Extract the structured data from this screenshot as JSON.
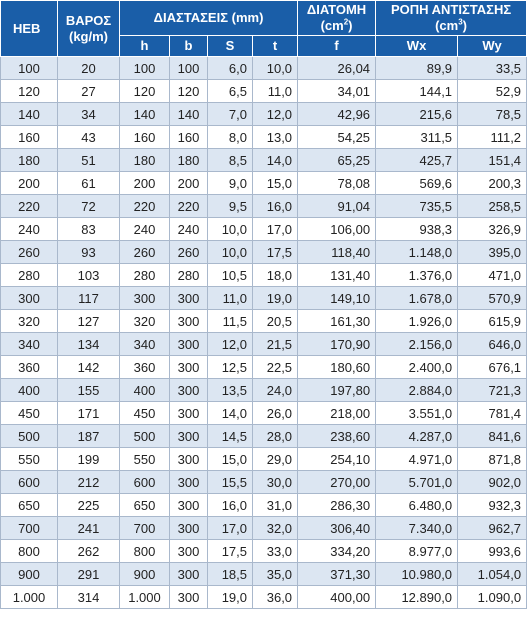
{
  "headers": {
    "heb": "HEB",
    "weight_l1": "ΒΑΡΟΣ",
    "weight_l2": "(kg/m)",
    "dimensions": "ΔΙΑΣΤΑΣΕΙΣ (mm)",
    "section_l1": "ΔΙΑΤΟΜΗ",
    "section_l2_pre": "(cm",
    "section_l2_sup": "2",
    "section_l2_post": ")",
    "moment_l1": "ΡΟΠΗ ΑΝΤΙΣΤΑΣΗΣ",
    "moment_l2_pre": "(cm",
    "moment_l2_sup": "3",
    "moment_l2_post": ")",
    "h": "h",
    "b": "b",
    "s": "S",
    "t": "t",
    "f": "f",
    "wx": "Wx",
    "wy": "Wy"
  },
  "rows": [
    {
      "heb": "100",
      "weight": "20",
      "h": "100",
      "b": "100",
      "s": "6,0",
      "t": "10,0",
      "f": "26,04",
      "wx": "89,9",
      "wy": "33,5"
    },
    {
      "heb": "120",
      "weight": "27",
      "h": "120",
      "b": "120",
      "s": "6,5",
      "t": "11,0",
      "f": "34,01",
      "wx": "144,1",
      "wy": "52,9"
    },
    {
      "heb": "140",
      "weight": "34",
      "h": "140",
      "b": "140",
      "s": "7,0",
      "t": "12,0",
      "f": "42,96",
      "wx": "215,6",
      "wy": "78,5"
    },
    {
      "heb": "160",
      "weight": "43",
      "h": "160",
      "b": "160",
      "s": "8,0",
      "t": "13,0",
      "f": "54,25",
      "wx": "311,5",
      "wy": "111,2"
    },
    {
      "heb": "180",
      "weight": "51",
      "h": "180",
      "b": "180",
      "s": "8,5",
      "t": "14,0",
      "f": "65,25",
      "wx": "425,7",
      "wy": "151,4"
    },
    {
      "heb": "200",
      "weight": "61",
      "h": "200",
      "b": "200",
      "s": "9,0",
      "t": "15,0",
      "f": "78,08",
      "wx": "569,6",
      "wy": "200,3"
    },
    {
      "heb": "220",
      "weight": "72",
      "h": "220",
      "b": "220",
      "s": "9,5",
      "t": "16,0",
      "f": "91,04",
      "wx": "735,5",
      "wy": "258,5"
    },
    {
      "heb": "240",
      "weight": "83",
      "h": "240",
      "b": "240",
      "s": "10,0",
      "t": "17,0",
      "f": "106,00",
      "wx": "938,3",
      "wy": "326,9"
    },
    {
      "heb": "260",
      "weight": "93",
      "h": "260",
      "b": "260",
      "s": "10,0",
      "t": "17,5",
      "f": "118,40",
      "wx": "1.148,0",
      "wy": "395,0"
    },
    {
      "heb": "280",
      "weight": "103",
      "h": "280",
      "b": "280",
      "s": "10,5",
      "t": "18,0",
      "f": "131,40",
      "wx": "1.376,0",
      "wy": "471,0"
    },
    {
      "heb": "300",
      "weight": "117",
      "h": "300",
      "b": "300",
      "s": "11,0",
      "t": "19,0",
      "f": "149,10",
      "wx": "1.678,0",
      "wy": "570,9"
    },
    {
      "heb": "320",
      "weight": "127",
      "h": "320",
      "b": "300",
      "s": "11,5",
      "t": "20,5",
      "f": "161,30",
      "wx": "1.926,0",
      "wy": "615,9"
    },
    {
      "heb": "340",
      "weight": "134",
      "h": "340",
      "b": "300",
      "s": "12,0",
      "t": "21,5",
      "f": "170,90",
      "wx": "2.156,0",
      "wy": "646,0"
    },
    {
      "heb": "360",
      "weight": "142",
      "h": "360",
      "b": "300",
      "s": "12,5",
      "t": "22,5",
      "f": "180,60",
      "wx": "2.400,0",
      "wy": "676,1"
    },
    {
      "heb": "400",
      "weight": "155",
      "h": "400",
      "b": "300",
      "s": "13,5",
      "t": "24,0",
      "f": "197,80",
      "wx": "2.884,0",
      "wy": "721,3"
    },
    {
      "heb": "450",
      "weight": "171",
      "h": "450",
      "b": "300",
      "s": "14,0",
      "t": "26,0",
      "f": "218,00",
      "wx": "3.551,0",
      "wy": "781,4"
    },
    {
      "heb": "500",
      "weight": "187",
      "h": "500",
      "b": "300",
      "s": "14,5",
      "t": "28,0",
      "f": "238,60",
      "wx": "4.287,0",
      "wy": "841,6"
    },
    {
      "heb": "550",
      "weight": "199",
      "h": "550",
      "b": "300",
      "s": "15,0",
      "t": "29,0",
      "f": "254,10",
      "wx": "4.971,0",
      "wy": "871,8"
    },
    {
      "heb": "600",
      "weight": "212",
      "h": "600",
      "b": "300",
      "s": "15,5",
      "t": "30,0",
      "f": "270,00",
      "wx": "5.701,0",
      "wy": "902,0"
    },
    {
      "heb": "650",
      "weight": "225",
      "h": "650",
      "b": "300",
      "s": "16,0",
      "t": "31,0",
      "f": "286,30",
      "wx": "6.480,0",
      "wy": "932,3"
    },
    {
      "heb": "700",
      "weight": "241",
      "h": "700",
      "b": "300",
      "s": "17,0",
      "t": "32,0",
      "f": "306,40",
      "wx": "7.340,0",
      "wy": "962,7"
    },
    {
      "heb": "800",
      "weight": "262",
      "h": "800",
      "b": "300",
      "s": "17,5",
      "t": "33,0",
      "f": "334,20",
      "wx": "8.977,0",
      "wy": "993,6"
    },
    {
      "heb": "900",
      "weight": "291",
      "h": "900",
      "b": "300",
      "s": "18,5",
      "t": "35,0",
      "f": "371,30",
      "wx": "10.980,0",
      "wy": "1.054,0"
    },
    {
      "heb": "1.000",
      "weight": "314",
      "h": "1.000",
      "b": "300",
      "s": "19,0",
      "t": "36,0",
      "f": "400,00",
      "wx": "12.890,0",
      "wy": "1.090,0"
    }
  ],
  "colors": {
    "header_bg": "#1a5ea8",
    "row_alt_bg": "#dce6f2",
    "border": "#a9b8cc"
  }
}
